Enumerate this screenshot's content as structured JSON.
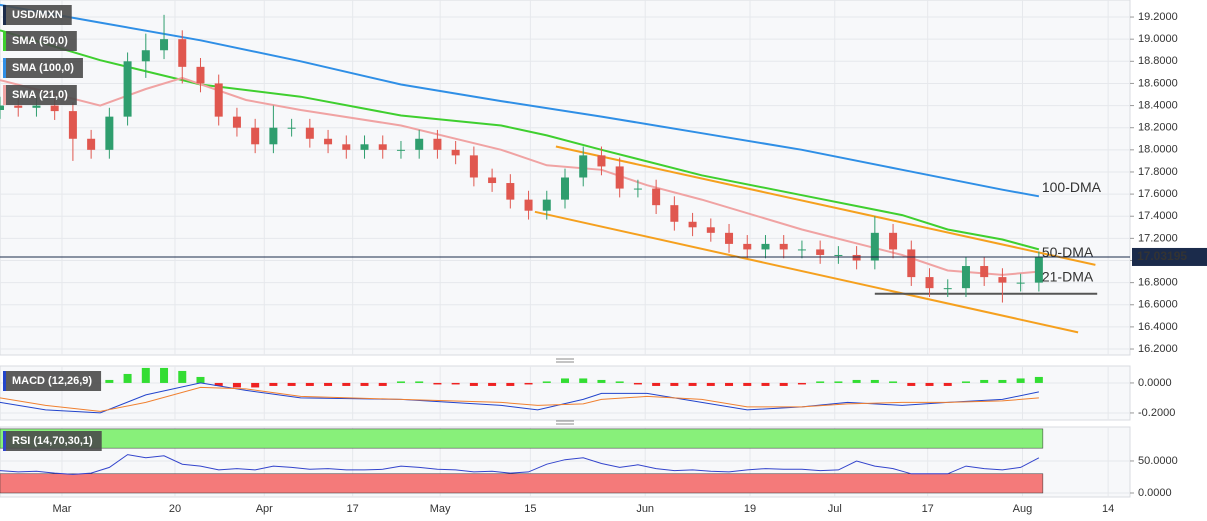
{
  "chart_data": [
    {
      "type": "candlestick",
      "xlim": [
        0,
        124
      ],
      "ylim": [
        16.146,
        19.354
      ],
      "yticks": [
        {
          "value": 16.2,
          "label": "16.2000"
        },
        {
          "value": 16.4,
          "label": "16.4000"
        },
        {
          "value": 16.6,
          "label": "16.6000"
        },
        {
          "value": 16.8,
          "label": "16.8000"
        },
        {
          "value": 17.0,
          "label": "17.0000"
        },
        {
          "value": 17.2,
          "label": "17.2000"
        },
        {
          "value": 17.4,
          "label": "17.4000"
        },
        {
          "value": 17.6,
          "label": "17.6000"
        },
        {
          "value": 17.8,
          "label": "17.8000"
        },
        {
          "value": 18.0,
          "label": "18.0000"
        },
        {
          "value": 18.2,
          "label": "18.2000"
        },
        {
          "value": 18.4,
          "label": "18.4000"
        },
        {
          "value": 18.6,
          "label": "18.6000"
        },
        {
          "value": 18.8,
          "label": "18.8000"
        },
        {
          "value": 19.0,
          "label": "19.0000"
        },
        {
          "value": 19.2,
          "label": "19.2000"
        }
      ],
      "grid": true,
      "series": [
        {
          "name": "USD/MXN",
          "up_color": "#2f9e6e",
          "down_color": "#e0574f",
          "x": [
            0,
            2,
            4,
            6,
            8,
            10,
            12,
            14,
            16,
            18,
            20,
            22,
            24,
            26,
            28,
            30,
            32,
            34,
            36,
            38,
            40,
            42,
            44,
            46,
            48,
            50,
            52,
            54,
            56,
            58,
            60,
            62,
            64,
            66,
            68,
            70,
            72,
            74,
            76,
            78,
            80,
            82,
            84,
            86,
            88,
            90,
            92,
            94,
            96,
            98,
            100,
            102,
            104,
            106,
            108,
            110,
            112,
            114
          ],
          "open": [
            18.36,
            18.4,
            18.38,
            18.4,
            18.35,
            18.1,
            18.0,
            18.3,
            18.8,
            18.9,
            19.0,
            18.75,
            18.6,
            18.3,
            18.2,
            18.05,
            18.2,
            18.2,
            18.1,
            18.05,
            18.0,
            18.05,
            18.0,
            18.0,
            18.1,
            18.0,
            17.95,
            17.75,
            17.7,
            17.55,
            17.45,
            17.55,
            17.75,
            17.95,
            17.85,
            17.65,
            17.65,
            17.5,
            17.35,
            17.3,
            17.25,
            17.15,
            17.1,
            17.15,
            17.1,
            17.1,
            17.05,
            17.05,
            17.0,
            17.25,
            17.1,
            16.85,
            16.75,
            16.75,
            16.95,
            16.85,
            16.8,
            16.8
          ],
          "high": [
            18.48,
            18.48,
            18.48,
            18.48,
            18.43,
            18.18,
            18.38,
            18.88,
            19.05,
            19.22,
            19.08,
            18.83,
            18.68,
            18.38,
            18.28,
            18.4,
            18.28,
            18.28,
            18.18,
            18.13,
            18.13,
            18.13,
            18.08,
            18.18,
            18.18,
            18.08,
            18.03,
            17.83,
            17.78,
            17.63,
            17.63,
            17.83,
            18.03,
            18.03,
            17.93,
            17.73,
            17.73,
            17.58,
            17.43,
            17.38,
            17.33,
            17.23,
            17.23,
            17.23,
            17.18,
            17.18,
            17.13,
            17.13,
            17.4,
            17.33,
            17.18,
            16.93,
            16.83,
            17.03,
            17.03,
            16.93,
            16.88,
            17.08
          ],
          "low": [
            18.28,
            18.3,
            18.3,
            18.27,
            17.9,
            17.92,
            17.92,
            18.22,
            18.65,
            18.82,
            18.6,
            18.52,
            18.22,
            18.12,
            17.97,
            17.97,
            18.12,
            18.02,
            17.97,
            17.92,
            17.92,
            17.92,
            17.92,
            17.92,
            17.92,
            17.87,
            17.67,
            17.62,
            17.47,
            17.37,
            17.37,
            17.47,
            17.67,
            17.77,
            17.57,
            17.57,
            17.42,
            17.27,
            17.22,
            17.17,
            17.07,
            17.02,
            17.02,
            17.02,
            17.02,
            16.97,
            16.97,
            16.92,
            16.92,
            17.02,
            16.77,
            16.67,
            16.67,
            16.67,
            16.77,
            16.62,
            16.72,
            16.72
          ],
          "close": [
            18.4,
            18.38,
            18.4,
            18.35,
            18.1,
            18.0,
            18.3,
            18.8,
            18.9,
            19.0,
            18.75,
            18.6,
            18.3,
            18.2,
            18.05,
            18.2,
            18.2,
            18.1,
            18.05,
            18.0,
            18.05,
            18.0,
            18.0,
            18.1,
            18.0,
            17.95,
            17.75,
            17.7,
            17.55,
            17.45,
            17.55,
            17.75,
            17.95,
            17.85,
            17.65,
            17.65,
            17.5,
            17.35,
            17.3,
            17.25,
            17.15,
            17.1,
            17.15,
            17.1,
            17.1,
            17.05,
            17.05,
            17.0,
            17.25,
            17.1,
            16.85,
            16.75,
            16.75,
            16.95,
            16.85,
            16.8,
            16.8,
            17.03
          ]
        }
      ],
      "lines": [
        {
          "name": "SMA (50,0)",
          "label": "50-DMA",
          "color": "#3fcf2f",
          "label_color": "#3fbf2f",
          "x": [
            0,
            11,
            22,
            33,
            44,
            55,
            60,
            66,
            77,
            88,
            99,
            104,
            110,
            114
          ],
          "values": [
            19.08,
            18.81,
            18.59,
            18.48,
            18.31,
            18.22,
            18.13,
            18.0,
            17.77,
            17.59,
            17.41,
            17.28,
            17.19,
            17.1
          ]
        },
        {
          "name": "SMA (100,0)",
          "label": "100-DMA",
          "color": "#2f8fe6",
          "label_color": "#2f8fe6",
          "x": [
            0,
            11,
            22,
            33,
            44,
            55,
            66,
            77,
            88,
            99,
            110,
            114
          ],
          "values": [
            19.31,
            19.15,
            18.99,
            18.8,
            18.59,
            18.44,
            18.3,
            18.15,
            18.0,
            17.82,
            17.64,
            17.58
          ]
        },
        {
          "name": "SMA (21,0)",
          "label": "21-DMA",
          "color": "#f0a3a3",
          "label_color": "#ee9a9a",
          "x": [
            0,
            11,
            16,
            20,
            27,
            33,
            44,
            55,
            60,
            66,
            71,
            77,
            88,
            99,
            104,
            110,
            114
          ],
          "values": [
            18.63,
            18.4,
            18.55,
            18.65,
            18.45,
            18.36,
            18.22,
            18.0,
            17.86,
            17.82,
            17.68,
            17.55,
            17.28,
            17.05,
            16.91,
            16.87,
            16.9
          ]
        }
      ],
      "trendlines": [
        {
          "x": [
            61,
            120.2
          ],
          "values": [
            18.03,
            16.96
          ],
          "color": "#f5a01e"
        },
        {
          "x": [
            58.7,
            118.3
          ],
          "values": [
            17.44,
            16.35
          ],
          "color": "#f5a01e"
        },
        {
          "x": [
            96,
            120.4
          ],
          "values": [
            16.7,
            16.7
          ],
          "color": "#555555"
        }
      ],
      "last_price": 17.03195,
      "last_color": "#1b2b4b"
    },
    {
      "type": "macd",
      "title": "MACD (12,26,9)",
      "xlim": [
        0,
        124
      ],
      "ylim": [
        -0.247,
        0.113
      ],
      "yticks": [
        {
          "value": 0,
          "label": "0.0000"
        },
        {
          "value": -0.2,
          "label": "-0.2000"
        }
      ],
      "histogram": {
        "pos_color": "#33dd33",
        "neg_color": "#ee2222",
        "x": [
          0,
          2,
          4,
          6,
          8,
          10,
          12,
          14,
          16,
          18,
          20,
          22,
          24,
          26,
          28,
          30,
          32,
          34,
          36,
          38,
          40,
          42,
          44,
          46,
          48,
          50,
          52,
          54,
          56,
          58,
          60,
          62,
          64,
          66,
          68,
          70,
          72,
          74,
          76,
          78,
          80,
          82,
          84,
          86,
          88,
          90,
          92,
          94,
          96,
          98,
          100,
          102,
          104,
          106,
          108,
          110,
          112,
          114
        ],
        "values": [
          0.0,
          0.0,
          0.0,
          0.0,
          0.0,
          0.0,
          0.02,
          0.06,
          0.1,
          0.1,
          0.08,
          0.04,
          -0.02,
          -0.03,
          -0.03,
          -0.02,
          -0.02,
          -0.02,
          -0.02,
          -0.02,
          -0.02,
          -0.02,
          0.01,
          0.01,
          -0.01,
          -0.01,
          -0.02,
          -0.02,
          -0.02,
          -0.01,
          0.01,
          0.03,
          0.03,
          0.02,
          0.01,
          -0.01,
          -0.02,
          -0.02,
          -0.02,
          -0.02,
          -0.02,
          -0.02,
          -0.02,
          -0.02,
          -0.01,
          0.01,
          0.01,
          0.02,
          0.02,
          0.01,
          -0.02,
          -0.02,
          -0.02,
          0.01,
          0.02,
          0.02,
          0.03,
          0.04
        ]
      },
      "series": [
        {
          "color": "#2244cc",
          "x": [
            0,
            5,
            11,
            16,
            22,
            27,
            33,
            44,
            55,
            59,
            64,
            66,
            71,
            77,
            82,
            88,
            93,
            99,
            104,
            110,
            114
          ],
          "values": [
            -0.13,
            -0.18,
            -0.2,
            -0.08,
            0.0,
            -0.05,
            -0.1,
            -0.11,
            -0.15,
            -0.18,
            -0.11,
            -0.07,
            -0.07,
            -0.13,
            -0.18,
            -0.16,
            -0.13,
            -0.15,
            -0.13,
            -0.11,
            -0.06
          ]
        },
        {
          "color": "#f08030",
          "x": [
            0,
            5,
            11,
            16,
            22,
            27,
            33,
            44,
            55,
            59,
            64,
            66,
            71,
            77,
            82,
            88,
            93,
            99,
            104,
            110,
            114
          ],
          "values": [
            -0.1,
            -0.15,
            -0.19,
            -0.13,
            -0.03,
            -0.04,
            -0.09,
            -0.11,
            -0.13,
            -0.15,
            -0.14,
            -0.11,
            -0.09,
            -0.11,
            -0.16,
            -0.16,
            -0.14,
            -0.13,
            -0.13,
            -0.12,
            -0.1
          ]
        }
      ]
    },
    {
      "type": "rsi",
      "title": "RSI (14,70,30,1)",
      "xlim": [
        0,
        124
      ],
      "ylim": [
        -6.25,
        103
      ],
      "yticks": [
        {
          "value": 0,
          "label": "0.0000"
        },
        {
          "value": 50,
          "label": "50.0000"
        }
      ],
      "xticks": [
        {
          "value": 6.8,
          "label": "Mar"
        },
        {
          "value": 19.2,
          "label": "20"
        },
        {
          "value": 29.0,
          "label": "Apr"
        },
        {
          "value": 38.7,
          "label": "17"
        },
        {
          "value": 48.3,
          "label": "May"
        },
        {
          "value": 58.2,
          "label": "15"
        },
        {
          "value": 70.8,
          "label": "Jun"
        },
        {
          "value": 82.3,
          "label": "19"
        },
        {
          "value": 91.6,
          "label": "Jul"
        },
        {
          "value": 101.8,
          "label": "17"
        },
        {
          "value": 112.2,
          "label": "Aug"
        },
        {
          "value": 121.6,
          "label": "14"
        }
      ],
      "zones": [
        {
          "from": 70,
          "to": 100,
          "color": "#88f07a"
        },
        {
          "from": 0,
          "to": 30,
          "color": "#f47a7a"
        }
      ],
      "series": [
        {
          "color": "#3344cc",
          "x": [
            0,
            2,
            4,
            6,
            8,
            10,
            12,
            14,
            16,
            18,
            20,
            22,
            24,
            26,
            28,
            30,
            32,
            34,
            36,
            38,
            40,
            42,
            44,
            46,
            48,
            50,
            52,
            54,
            56,
            58,
            60,
            62,
            64,
            66,
            68,
            70,
            72,
            74,
            76,
            78,
            80,
            82,
            84,
            86,
            88,
            90,
            92,
            94,
            96,
            98,
            100,
            102,
            104,
            106,
            108,
            110,
            112,
            114
          ],
          "values": [
            35,
            33,
            34,
            31,
            29,
            31,
            40,
            60,
            55,
            58,
            45,
            42,
            36,
            38,
            36,
            42,
            40,
            37,
            38,
            36,
            36,
            37,
            42,
            40,
            37,
            36,
            33,
            34,
            31,
            33,
            45,
            52,
            55,
            46,
            40,
            44,
            38,
            35,
            36,
            34,
            33,
            36,
            38,
            37,
            37,
            35,
            36,
            50,
            42,
            38,
            30,
            30,
            30,
            42,
            38,
            36,
            40,
            55
          ]
        }
      ]
    }
  ]
}
